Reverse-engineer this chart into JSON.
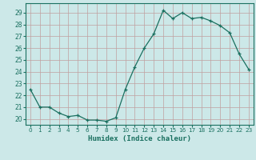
{
  "x": [
    0,
    1,
    2,
    3,
    4,
    5,
    6,
    7,
    8,
    9,
    10,
    11,
    12,
    13,
    14,
    15,
    16,
    17,
    18,
    19,
    20,
    21,
    22,
    23
  ],
  "y": [
    22.5,
    21.0,
    21.0,
    20.5,
    20.2,
    20.3,
    19.9,
    19.9,
    19.8,
    20.1,
    22.5,
    24.4,
    26.0,
    27.2,
    29.2,
    28.5,
    29.0,
    28.5,
    28.6,
    28.3,
    27.9,
    27.3,
    25.5,
    24.2
  ],
  "xlabel": "Humidex (Indice chaleur)",
  "ylabel": "",
  "ylim": [
    19.5,
    29.8
  ],
  "xlim": [
    -0.5,
    23.5
  ],
  "yticks": [
    20,
    21,
    22,
    23,
    24,
    25,
    26,
    27,
    28,
    29
  ],
  "xticks": [
    0,
    1,
    2,
    3,
    4,
    5,
    6,
    7,
    8,
    9,
    10,
    11,
    12,
    13,
    14,
    15,
    16,
    17,
    18,
    19,
    20,
    21,
    22,
    23
  ],
  "line_color": "#1a7060",
  "marker": "+",
  "bg_color": "#cce8e8",
  "grid_color": "#c0a0a0",
  "axis_color": "#1a7060",
  "tick_color": "#1a7060",
  "xlabel_color": "#1a7060"
}
